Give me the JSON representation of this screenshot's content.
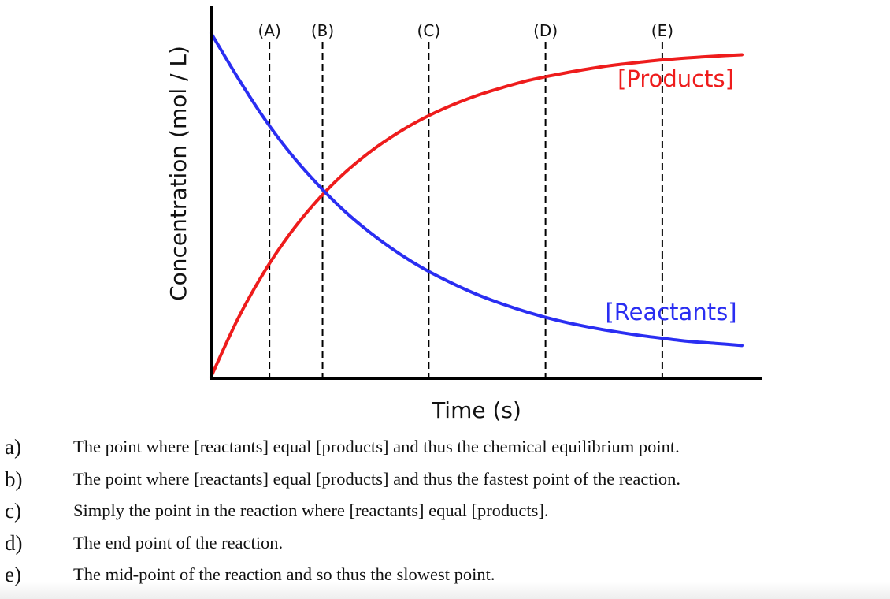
{
  "chart_data": {
    "type": "line",
    "xlabel": "Time (s)",
    "ylabel": "Concentration (mol / L)",
    "xlim": [
      0,
      10
    ],
    "ylim": [
      0,
      1
    ],
    "x_ticks_shown": false,
    "y_ticks_shown": false,
    "grid": false,
    "colors": {
      "products": "#ee1c1c",
      "reactants": "#2a2ef2",
      "axes": "#000000",
      "markers": "#000000"
    },
    "series": [
      {
        "name": "[Products]",
        "color": "#ee1c1c",
        "x": [
          0,
          0.5,
          1,
          1.5,
          2,
          2.5,
          3,
          3.5,
          4,
          4.5,
          5,
          5.5,
          6,
          6.5,
          7,
          7.5,
          8,
          8.5,
          9,
          9.5,
          10
        ],
        "y": [
          0.0,
          0.167,
          0.305,
          0.419,
          0.513,
          0.591,
          0.655,
          0.708,
          0.752,
          0.788,
          0.818,
          0.842,
          0.863,
          0.879,
          0.893,
          0.905,
          0.914,
          0.922,
          0.928,
          0.933,
          0.937
        ]
      },
      {
        "name": "[Reactants]",
        "color": "#2a2ef2",
        "x": [
          0,
          0.5,
          1,
          1.5,
          2,
          2.5,
          3,
          3.5,
          4,
          4.5,
          5,
          5.5,
          6,
          6.5,
          7,
          7.5,
          8,
          8.5,
          9,
          9.5,
          10
        ],
        "y": [
          1.0,
          0.871,
          0.752,
          0.649,
          0.561,
          0.484,
          0.419,
          0.363,
          0.315,
          0.275,
          0.24,
          0.211,
          0.186,
          0.165,
          0.148,
          0.134,
          0.122,
          0.112,
          0.103,
          0.097,
          0.091
        ]
      }
    ],
    "markers": [
      {
        "label": "(A)",
        "x": 1.1
      },
      {
        "label": "(B)",
        "x": 2.1
      },
      {
        "label": "(C)",
        "x": 4.1
      },
      {
        "label": "(D)",
        "x": 6.3
      },
      {
        "label": "(E)",
        "x": 8.5
      }
    ]
  },
  "options": [
    {
      "letter": "a)",
      "text": "The point where [reactants] equal [products] and thus the chemical equilibrium point."
    },
    {
      "letter": "b)",
      "text": "The point where [reactants] equal [products] and thus the fastest point of the reaction."
    },
    {
      "letter": "c)",
      "text": "Simply the point in the reaction where [reactants] equal [products]."
    },
    {
      "letter": "d)",
      "text": "The end point of the reaction."
    },
    {
      "letter": "e)",
      "text": "The mid-point of the reaction and so thus the slowest point."
    }
  ]
}
